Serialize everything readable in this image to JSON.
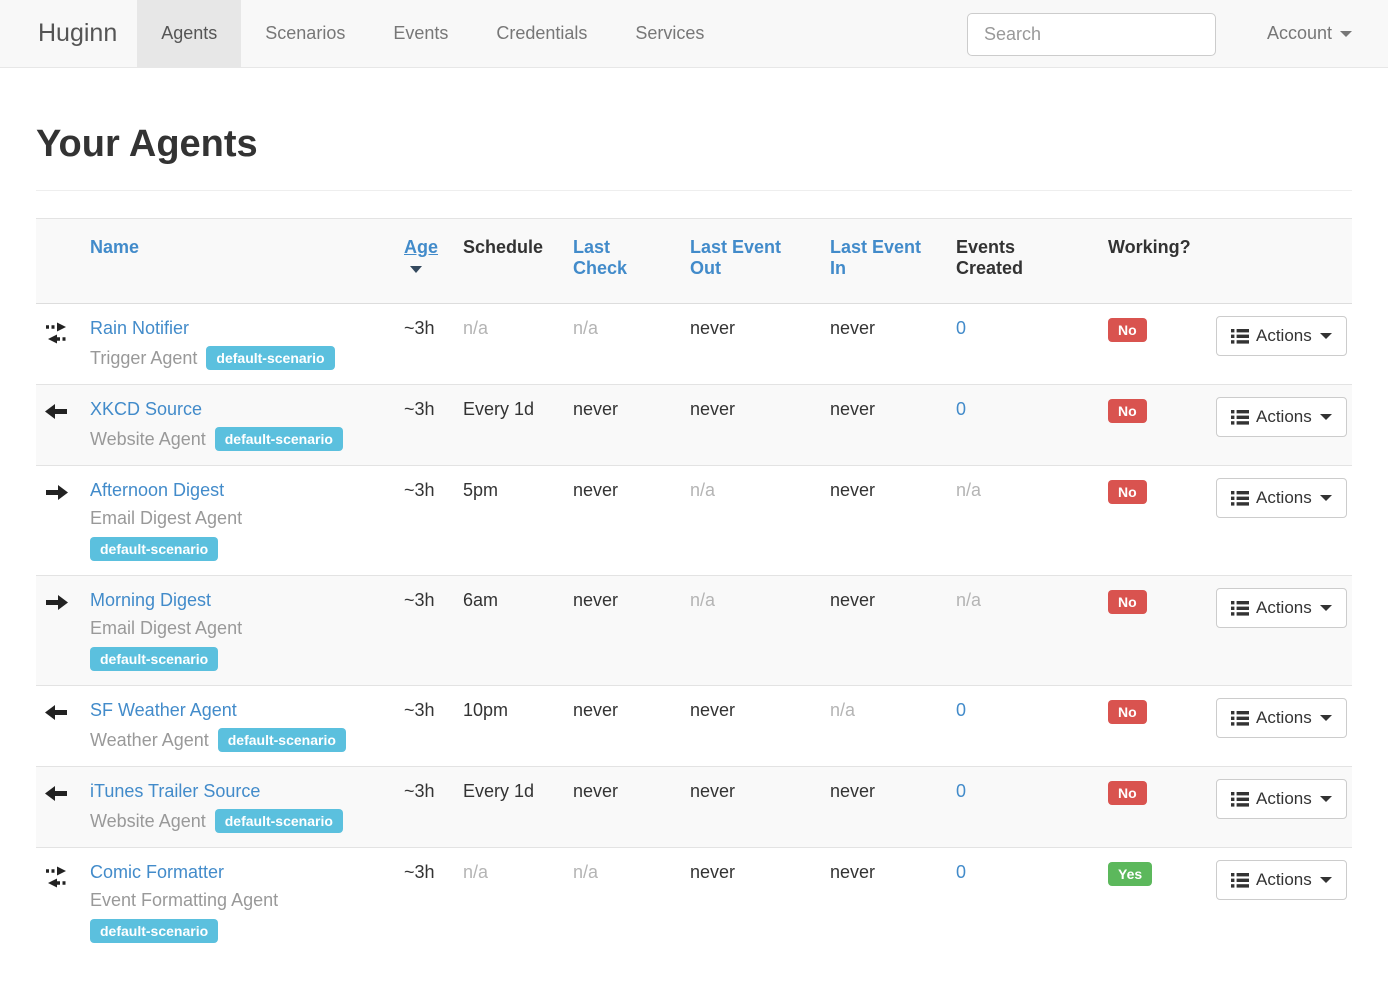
{
  "navbar": {
    "brand": "Huginn",
    "items": [
      {
        "label": "Agents",
        "active": true
      },
      {
        "label": "Scenarios",
        "active": false
      },
      {
        "label": "Events",
        "active": false
      },
      {
        "label": "Credentials",
        "active": false
      },
      {
        "label": "Services",
        "active": false
      }
    ],
    "search_placeholder": "Search",
    "account_label": "Account"
  },
  "page": {
    "title": "Your Agents"
  },
  "colors": {
    "link_blue": "#428bca",
    "badge_info": "#5bc0de",
    "status_no": "#d9534f",
    "status_yes": "#5cb85c",
    "navbar_bg": "#f8f8f8",
    "stripe_bg": "#f9f9f9"
  },
  "table": {
    "headers": [
      {
        "label": "Name",
        "link": true
      },
      {
        "label": "Age",
        "link": true,
        "sorted": "desc"
      },
      {
        "label": "Schedule",
        "link": false
      },
      {
        "label": "Last Check",
        "link": true
      },
      {
        "label": "Last Event Out",
        "link": true
      },
      {
        "label": "Last Event In",
        "link": true
      },
      {
        "label": "Events Created",
        "link": false
      },
      {
        "label": "Working?",
        "link": false
      }
    ],
    "actions_label": "Actions",
    "rows": [
      {
        "icon": "bidirectional-arrows",
        "name": "Rain Notifier",
        "type": "Trigger Agent",
        "badge": "default-scenario",
        "badge_inline": true,
        "age": "~3h",
        "schedule": {
          "text": "n/a",
          "muted": true
        },
        "last_check": {
          "text": "n/a",
          "muted": true
        },
        "last_event_out": {
          "text": "never"
        },
        "last_event_in": {
          "text": "never"
        },
        "events_created": {
          "text": "0",
          "link": true
        },
        "working": {
          "text": "No",
          "status": "no"
        }
      },
      {
        "icon": "arrow-left",
        "name": "XKCD Source",
        "type": "Website Agent",
        "badge": "default-scenario",
        "badge_inline": true,
        "age": "~3h",
        "schedule": {
          "text": "Every 1d"
        },
        "last_check": {
          "text": "never"
        },
        "last_event_out": {
          "text": "never"
        },
        "last_event_in": {
          "text": "never"
        },
        "events_created": {
          "text": "0",
          "link": true
        },
        "working": {
          "text": "No",
          "status": "no"
        }
      },
      {
        "icon": "arrow-right",
        "name": "Afternoon Digest",
        "type": "Email Digest Agent",
        "badge": "default-scenario",
        "badge_inline": false,
        "age": "~3h",
        "schedule": {
          "text": "5pm"
        },
        "last_check": {
          "text": "never"
        },
        "last_event_out": {
          "text": "n/a",
          "muted": true
        },
        "last_event_in": {
          "text": "never"
        },
        "events_created": {
          "text": "n/a",
          "muted": true
        },
        "working": {
          "text": "No",
          "status": "no"
        }
      },
      {
        "icon": "arrow-right",
        "name": "Morning Digest",
        "type": "Email Digest Agent",
        "badge": "default-scenario",
        "badge_inline": false,
        "age": "~3h",
        "schedule": {
          "text": "6am"
        },
        "last_check": {
          "text": "never"
        },
        "last_event_out": {
          "text": "n/a",
          "muted": true
        },
        "last_event_in": {
          "text": "never"
        },
        "events_created": {
          "text": "n/a",
          "muted": true
        },
        "working": {
          "text": "No",
          "status": "no"
        }
      },
      {
        "icon": "arrow-left",
        "name": "SF Weather Agent",
        "type": "Weather Agent",
        "badge": "default-scenario",
        "badge_inline": true,
        "age": "~3h",
        "schedule": {
          "text": "10pm"
        },
        "last_check": {
          "text": "never"
        },
        "last_event_out": {
          "text": "never"
        },
        "last_event_in": {
          "text": "n/a",
          "muted": true
        },
        "events_created": {
          "text": "0",
          "link": true
        },
        "working": {
          "text": "No",
          "status": "no"
        }
      },
      {
        "icon": "arrow-left",
        "name": "iTunes Trailer Source",
        "type": "Website Agent",
        "badge": "default-scenario",
        "badge_inline": true,
        "age": "~3h",
        "schedule": {
          "text": "Every 1d"
        },
        "last_check": {
          "text": "never"
        },
        "last_event_out": {
          "text": "never"
        },
        "last_event_in": {
          "text": "never"
        },
        "events_created": {
          "text": "0",
          "link": true
        },
        "working": {
          "text": "No",
          "status": "no"
        }
      },
      {
        "icon": "bidirectional-arrows",
        "name": "Comic Formatter",
        "type": "Event Formatting Agent",
        "badge": "default-scenario",
        "badge_inline": false,
        "age": "~3h",
        "schedule": {
          "text": "n/a",
          "muted": true
        },
        "last_check": {
          "text": "n/a",
          "muted": true
        },
        "last_event_out": {
          "text": "never"
        },
        "last_event_in": {
          "text": "never"
        },
        "events_created": {
          "text": "0",
          "link": true
        },
        "working": {
          "text": "Yes",
          "status": "yes"
        }
      }
    ]
  }
}
